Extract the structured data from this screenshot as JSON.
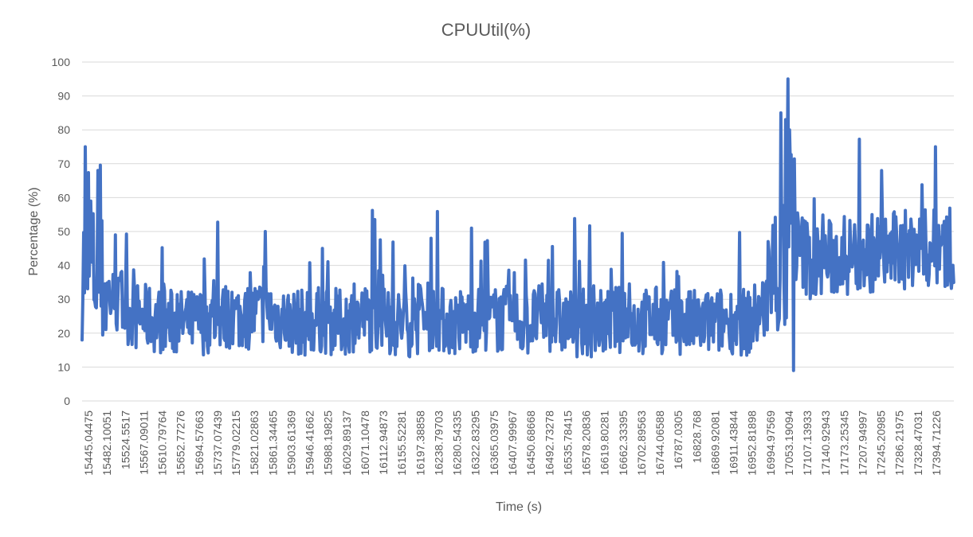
{
  "chart_data": {
    "type": "line",
    "title": "CPUUtil(%)",
    "xlabel": "Time (s)",
    "ylabel": "Percentage (%)",
    "ylim": [
      0,
      100
    ],
    "yticks": [
      0,
      10,
      20,
      30,
      40,
      50,
      60,
      70,
      80,
      90,
      100
    ],
    "grid": true,
    "legend": "none",
    "colors": {
      "series": "#4472c4",
      "grid": "#d9d9d9",
      "text": "#595959"
    },
    "x_tick_labels": [
      "15445.04475",
      "15482.10051",
      "15524.5517",
      "15567.09011",
      "15610.79764",
      "15652.77276",
      "15694.57663",
      "15737.07439",
      "15779.02215",
      "15821.02863",
      "15861.34465",
      "15903.61369",
      "15946.41662",
      "15988.19825",
      "16029.89137",
      "16071.10478",
      "16112.94873",
      "16155.52281",
      "16197.38858",
      "16238.79703",
      "16280.54335",
      "16322.83295",
      "16365.03975",
      "16407.99967",
      "16450.68668",
      "16492.73278",
      "16535.78415",
      "16578.20836",
      "16619.80281",
      "16662.33395",
      "16702.89563",
      "16744.06588",
      "16787.0305",
      "16828.768",
      "16869.92081",
      "16911.43844",
      "16952.81898",
      "16994.97569",
      "17053.19094",
      "17107.13933",
      "17140.92943",
      "17173.25345",
      "17207.94997",
      "17245.20985",
      "17286.21975",
      "17328.47031",
      "17394.71226"
    ],
    "x_range": [
      15445.04475,
      17420.0
    ],
    "series": [
      {
        "x": [
          15445.04475,
          15482.10051,
          15524.5517,
          15567.09011,
          15610.79764,
          15652.77276,
          15694.57663,
          15737.07439,
          15779.02215,
          15821.02863,
          15861.34465,
          15903.61369,
          15946.41662,
          15988.19825,
          16029.89137,
          16071.10478,
          16112.94873,
          16155.52281,
          16197.38858,
          16238.79703,
          16280.54335,
          16322.83295,
          16365.03975,
          16407.99967,
          16450.68668,
          16492.73278,
          16535.78415,
          16578.20836,
          16619.80281,
          16662.33395,
          16702.89563,
          16744.06588,
          16787.0305,
          16828.768,
          16869.92081,
          16911.43844,
          16952.81898,
          16994.97569,
          17053.19094,
          17107.13933,
          17140.92943,
          17173.25345,
          17207.94997,
          17245.20985,
          17286.21975,
          17328.47031,
          17394.71226
        ],
        "values": [
          40,
          36,
          28,
          25,
          24,
          23,
          23,
          24,
          25,
          25,
          27,
          24,
          23,
          24,
          23,
          25,
          24,
          23,
          23,
          25,
          23,
          24,
          24,
          24,
          23,
          25,
          23,
          23,
          23,
          24,
          23,
          24,
          23,
          23,
          23,
          24,
          23,
          28,
          47,
          40,
          42,
          43,
          43,
          44,
          44,
          45,
          45
        ],
        "peaks": [
          75,
          59,
          49,
          39,
          39,
          46,
          50,
          45,
          45,
          44,
          48,
          41,
          42,
          42,
          46,
          42,
          42,
          42,
          42,
          41,
          43,
          45,
          85,
          95,
          59,
          57,
          63,
          60,
          63,
          75
        ],
        "min_values": [
          22,
          20,
          10,
          11,
          12,
          10,
          11,
          12,
          11,
          12,
          12,
          11,
          11,
          12,
          13,
          12,
          13,
          13,
          12,
          12,
          12,
          12,
          9,
          25,
          33,
          31,
          30,
          33,
          33,
          18
        ]
      }
    ]
  }
}
